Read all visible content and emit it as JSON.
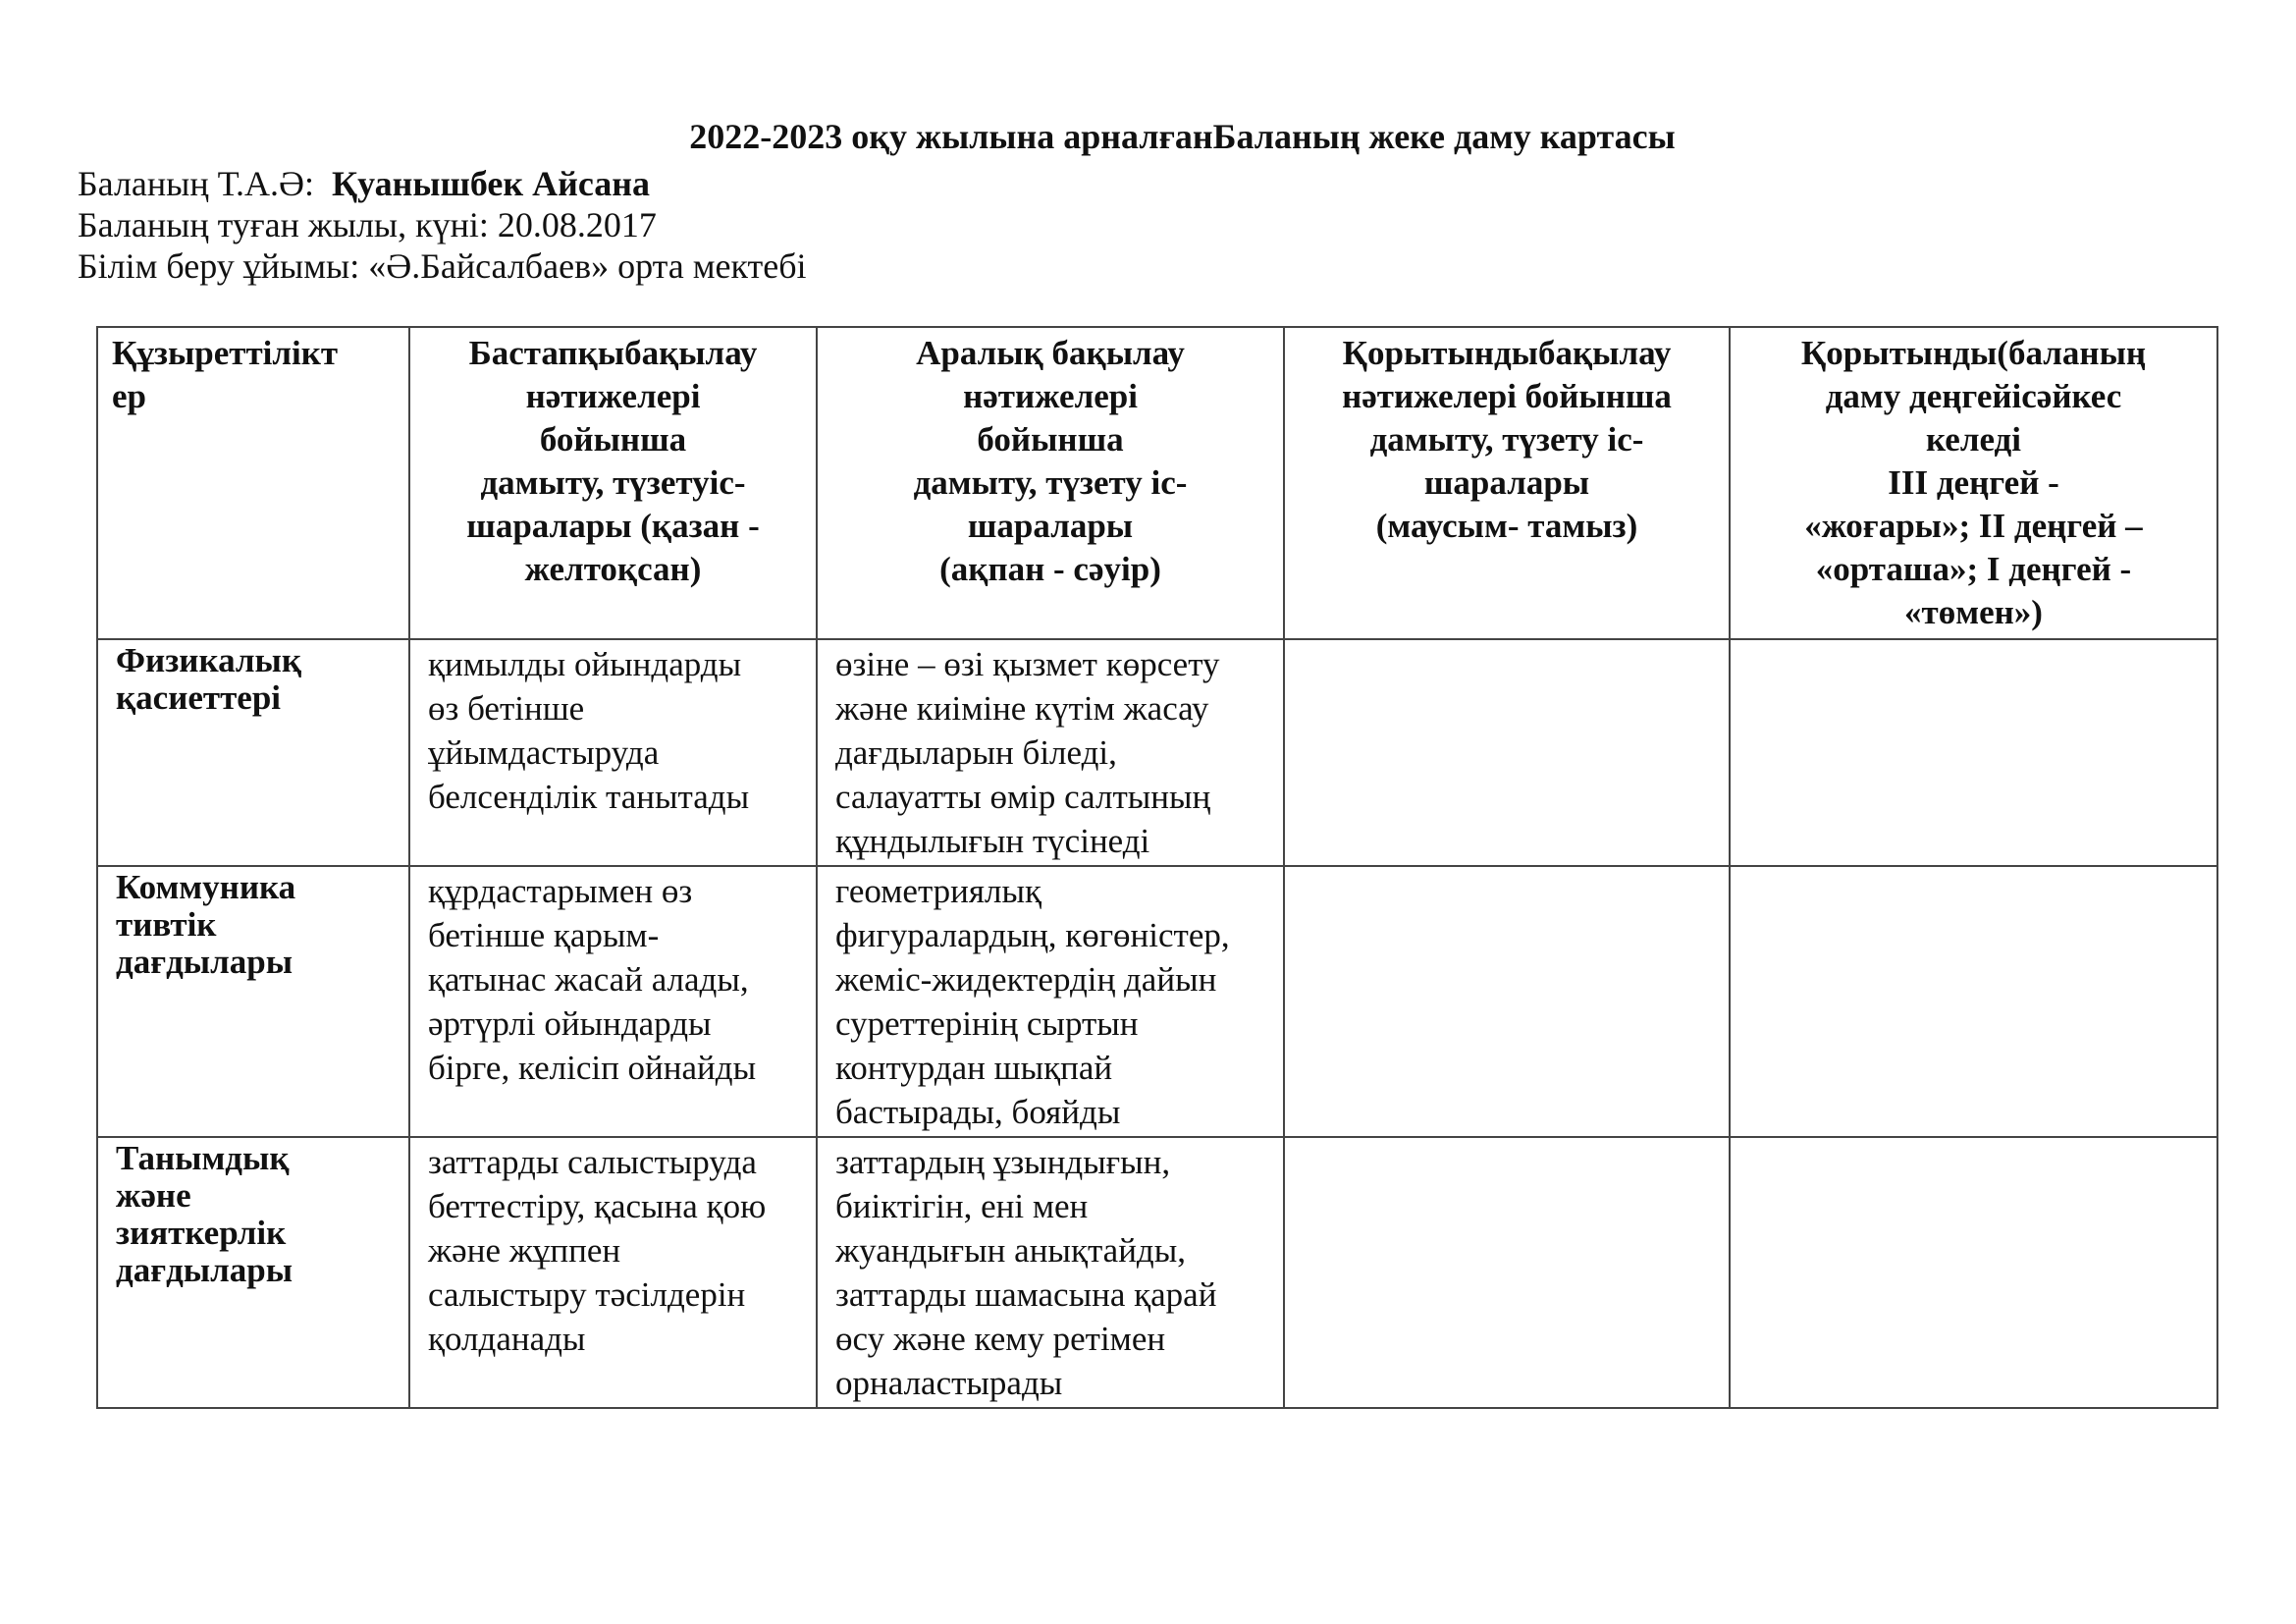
{
  "title": "2022-2023 оқу жылына арналғанБаланың жеке даму картасы",
  "child_name_label": "Баланың Т.А.Ә:",
  "child_name": "Қуанышбек Айсана",
  "birth_label": "Баланың туған жылы, күні:",
  "birth_date": "20.08.2017",
  "org_label": "Білім беру ұйымы:",
  "org_name": "«Ә.Байсалбаев» орта мектебі",
  "table": {
    "headers": [
      "Құзыреттілікт\n       ер",
      "Бастапқыбақылау\nнәтижелері\nбойынша\nдамыту, түзетуіс-\nшаралары (қазан -\nжелтоқсан)",
      "Аралық бақылау\nнәтижелері\nбойынша\nдамыту, түзету іс-\nшаралары\n(ақпан - сәуір)",
      "Қорытындыбақылау\nнәтижелері бойынша\nдамыту, түзету іс-\nшаралары\n(маусым- тамыз)",
      "Қорытынды(баланың\nдаму деңгейісәйкес\nкеледі\nIII деңгей -\n«жоғары»; II деңгей –\n«орташа»; I деңгей -\n«төмен»)"
    ],
    "rows": [
      [
        "Физикалық\nқасиеттері",
        "қимылды ойындарды\nөз бетінше\nұйымдастыруда\nбелсенділік танытады",
        "өзіне – өзі қызмет көрсету\nжәне киіміне күтім жасау\nдағдыларын біледі,\nсалауатты өмір салтының\nқұндылығын түсінеді",
        "",
        ""
      ],
      [
        "Коммуника\nтивтік\nдағдылары",
        "құрдастарымен өз\nбетінше қарым-\nқатынас жасай алады,\nәртүрлі ойындарды\nбірге, келісіп ойнайды",
        "геометриялық\nфигуралардың, көгөністер,\nжеміс-жидектердің дайын\nсуреттерінің сыртын\nконтурдан шықпай\nбастырады, бояйды",
        "",
        ""
      ],
      [
        "Танымдық\nжәне\nзияткерлік\nдағдылары",
        "заттарды салыстыруда\nбеттестіру, қасына қою\nжәне жұппен\nсалыстыру тәсілдерін\nқолданады",
        "заттардың ұзындығын,\nбиіктігін, ені мен\nжуандығын анықтайды,\nзаттарды шамасына қарай\nөсу және кему ретімен\nорналастырады",
        "",
        ""
      ]
    ]
  }
}
